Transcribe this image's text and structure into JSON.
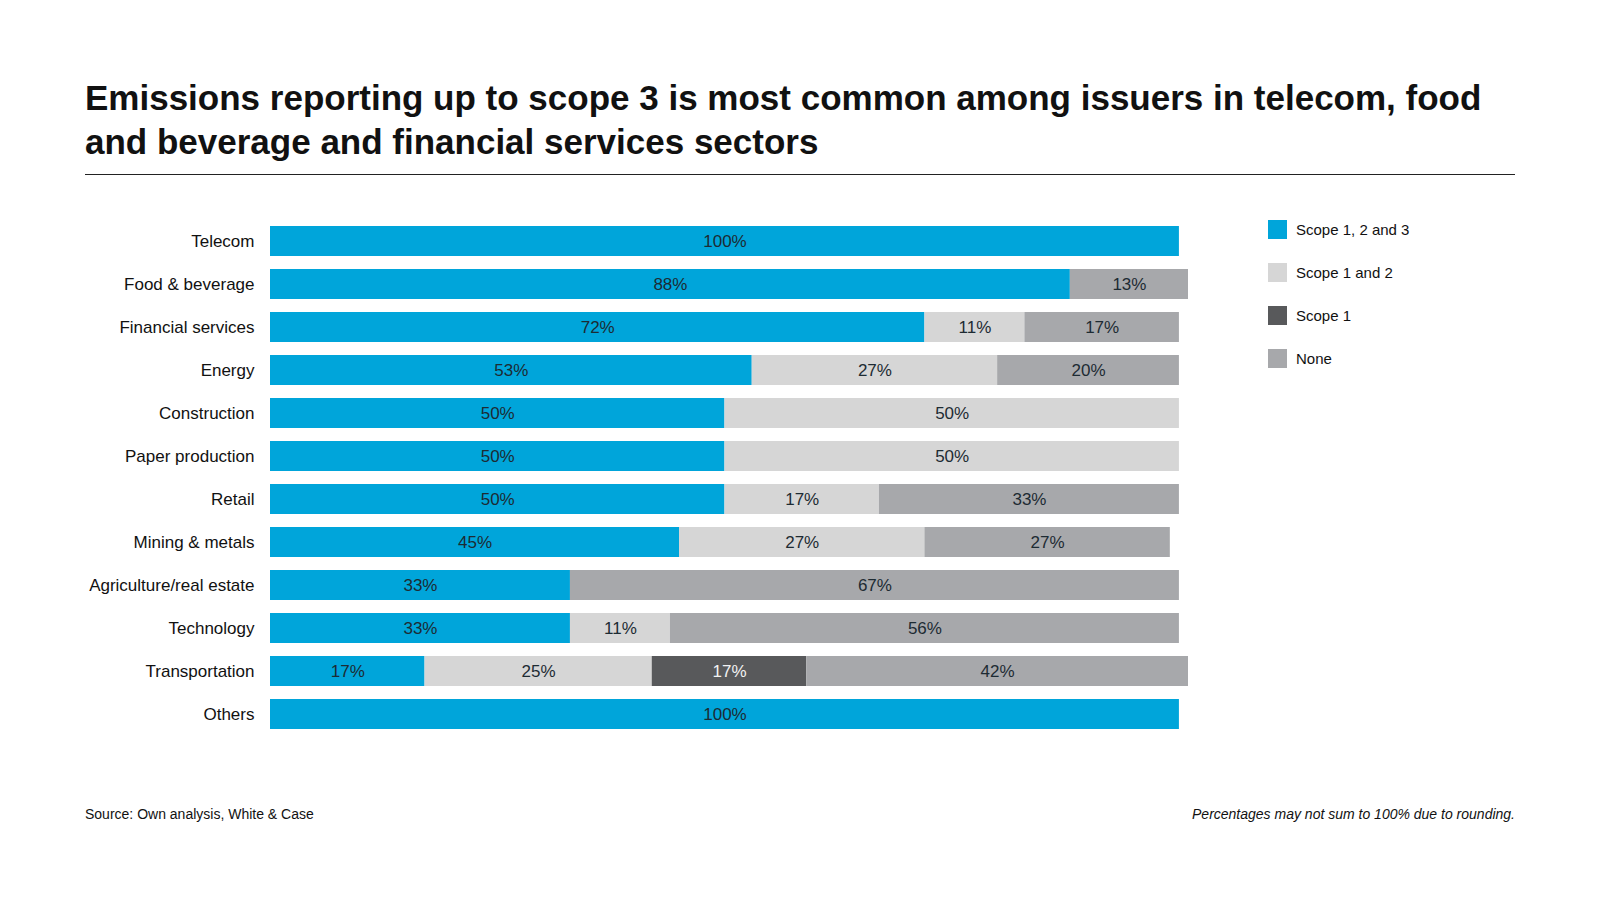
{
  "chart_data": {
    "type": "bar",
    "title": "Emissions reporting up to scope 3 is most common among issuers in telecom, food and beverage and financial services sectors",
    "source": "Source: Own analysis, White & Case",
    "note": "Percentages may not sum to 100% due to rounding.",
    "orientation": "horizontal",
    "stacked": true,
    "data_labels": true,
    "tick_labels": "y",
    "legend": "right",
    "xlim": [
      0,
      101
    ],
    "categories": [
      "Telecom",
      "Food & beverage",
      "Financial services",
      "Energy",
      "Construction",
      "Paper production",
      "Retail",
      "Mining & metals",
      "Agriculture/real estate",
      "Technology",
      "Transportation",
      "Others"
    ],
    "series": [
      {
        "name": "Scope 1, 2 and 3",
        "color": "#00a5da",
        "values": [
          100,
          88,
          72,
          53,
          50,
          50,
          50,
          45,
          33,
          33,
          17,
          100
        ],
        "value_labels": [
          "100%",
          "88%",
          "72%",
          "53%",
          "50%",
          "50%",
          "50%",
          "45%",
          "33%",
          "33%",
          "17%",
          "100%"
        ]
      },
      {
        "name": "Scope 1 and 2",
        "color": "#d6d6d6",
        "values": [
          null,
          null,
          11,
          27,
          50,
          50,
          17,
          27,
          null,
          11,
          25,
          null
        ],
        "value_labels": [
          null,
          null,
          "11%",
          "27%",
          "50%",
          "50%",
          "17%",
          "27%",
          null,
          "11%",
          "25%",
          null
        ]
      },
      {
        "name": "Scope 1",
        "color": "#58595b",
        "values": [
          null,
          null,
          null,
          null,
          null,
          null,
          null,
          null,
          null,
          null,
          17,
          null
        ],
        "value_labels": [
          null,
          null,
          null,
          null,
          null,
          null,
          null,
          null,
          null,
          null,
          "17%",
          null
        ]
      },
      {
        "name": "None",
        "color": "#a7a8ab",
        "values": [
          null,
          13,
          17,
          20,
          null,
          null,
          33,
          27,
          67,
          56,
          42,
          null
        ],
        "value_labels": [
          null,
          "13%",
          "17%",
          "20%",
          null,
          null,
          "33%",
          "27%",
          "67%",
          "56%",
          "42%",
          null
        ]
      }
    ]
  }
}
